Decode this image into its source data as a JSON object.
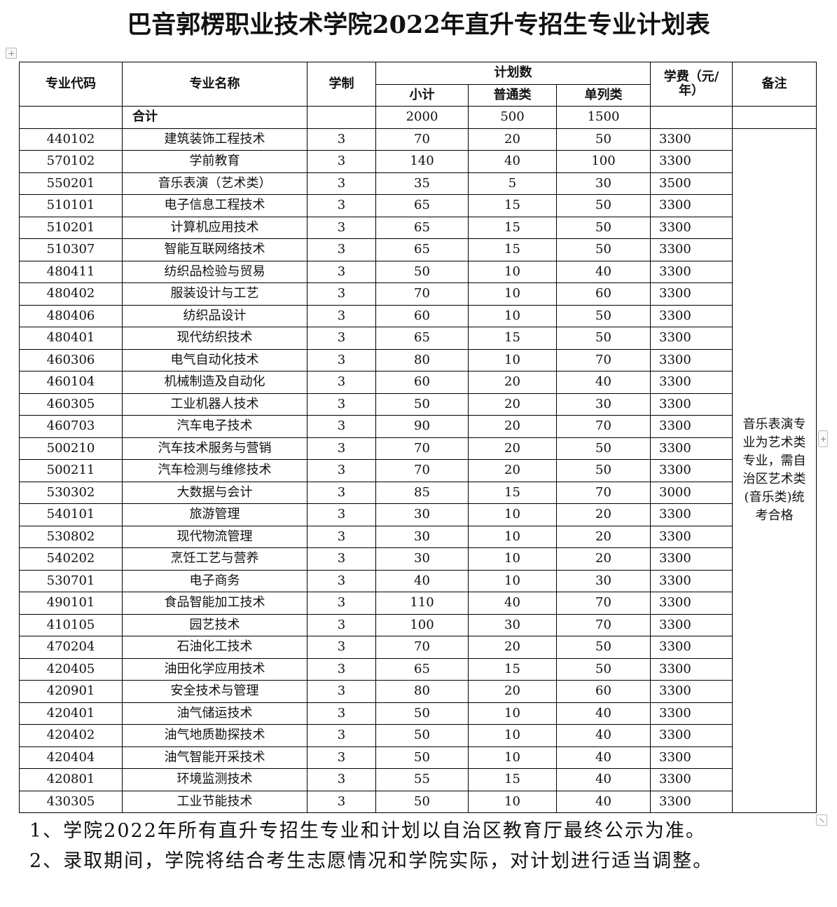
{
  "title": "巴音郭楞职业技术学院2022年直升专招生专业计划表",
  "header": {
    "code": "专业代码",
    "name": "专业名称",
    "duration": "学制",
    "plan": "计划数",
    "subtotal": "小计",
    "regular": "普通类",
    "separate": "单列类",
    "fee": "学费（元/年）",
    "remark": "备注"
  },
  "total": {
    "label": "合计",
    "subtotal": "2000",
    "regular": "500",
    "separate": "1500"
  },
  "rows": [
    [
      "440102",
      "建筑装饰工程技术",
      "3",
      "70",
      "20",
      "50",
      "3300"
    ],
    [
      "570102",
      "学前教育",
      "3",
      "140",
      "40",
      "100",
      "3300"
    ],
    [
      "550201",
      "音乐表演（艺术类）",
      "3",
      "35",
      "5",
      "30",
      "3500"
    ],
    [
      "510101",
      "电子信息工程技术",
      "3",
      "65",
      "15",
      "50",
      "3300"
    ],
    [
      "510201",
      "计算机应用技术",
      "3",
      "65",
      "15",
      "50",
      "3300"
    ],
    [
      "510307",
      "智能互联网络技术",
      "3",
      "65",
      "15",
      "50",
      "3300"
    ],
    [
      "480411",
      "纺织品检验与贸易",
      "3",
      "50",
      "10",
      "40",
      "3300"
    ],
    [
      "480402",
      "服装设计与工艺",
      "3",
      "70",
      "10",
      "60",
      "3300"
    ],
    [
      "480406",
      "纺织品设计",
      "3",
      "60",
      "10",
      "50",
      "3300"
    ],
    [
      "480401",
      "现代纺织技术",
      "3",
      "65",
      "15",
      "50",
      "3300"
    ],
    [
      "460306",
      "电气自动化技术",
      "3",
      "80",
      "10",
      "70",
      "3300"
    ],
    [
      "460104",
      "机械制造及自动化",
      "3",
      "60",
      "20",
      "40",
      "3300"
    ],
    [
      "460305",
      "工业机器人技术",
      "3",
      "50",
      "20",
      "30",
      "3300"
    ],
    [
      "460703",
      "汽车电子技术",
      "3",
      "90",
      "20",
      "70",
      "3300"
    ],
    [
      "500210",
      "汽车技术服务与营销",
      "3",
      "70",
      "20",
      "50",
      "3300"
    ],
    [
      "500211",
      "汽车检测与维修技术",
      "3",
      "70",
      "20",
      "50",
      "3300"
    ],
    [
      "530302",
      "大数据与会计",
      "3",
      "85",
      "15",
      "70",
      "3000"
    ],
    [
      "540101",
      "旅游管理",
      "3",
      "30",
      "10",
      "20",
      "3300"
    ],
    [
      "530802",
      "现代物流管理",
      "3",
      "30",
      "10",
      "20",
      "3300"
    ],
    [
      "540202",
      "烹饪工艺与营养",
      "3",
      "30",
      "10",
      "20",
      "3300"
    ],
    [
      "530701",
      "电子商务",
      "3",
      "40",
      "10",
      "30",
      "3300"
    ],
    [
      "490101",
      "食品智能加工技术",
      "3",
      "110",
      "40",
      "70",
      "3300"
    ],
    [
      "410105",
      "园艺技术",
      "3",
      "100",
      "30",
      "70",
      "3300"
    ],
    [
      "470204",
      "石油化工技术",
      "3",
      "70",
      "20",
      "50",
      "3300"
    ],
    [
      "420405",
      "油田化学应用技术",
      "3",
      "65",
      "15",
      "50",
      "3300"
    ],
    [
      "420901",
      "安全技术与管理",
      "3",
      "80",
      "20",
      "60",
      "3300"
    ],
    [
      "420401",
      "油气储运技术",
      "3",
      "50",
      "10",
      "40",
      "3300"
    ],
    [
      "420402",
      "油气地质勘探技术",
      "3",
      "50",
      "10",
      "40",
      "3300"
    ],
    [
      "420404",
      "油气智能开采技术",
      "3",
      "50",
      "10",
      "40",
      "3300"
    ],
    [
      "420801",
      "环境监测技术",
      "3",
      "55",
      "15",
      "40",
      "3300"
    ],
    [
      "430305",
      "工业节能技术",
      "3",
      "50",
      "10",
      "40",
      "3300"
    ]
  ],
  "remark_text": "音乐表演专业为艺术类专业，需自治区艺术类(音乐类)统考合格",
  "notes": [
    "1、学院2022年所有直升专招生专业和计划以自治区教育厅最终公示为准。",
    "2、录取期间，学院将结合考生志愿情况和学院实际，对计划进行适当调整。"
  ]
}
